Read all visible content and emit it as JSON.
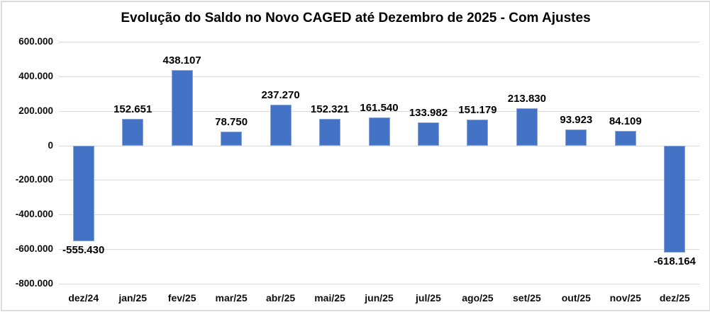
{
  "chart_data": {
    "type": "bar",
    "title": "Evolução do Saldo no Novo CAGED até Dezembro de 2025 - Com Ajustes",
    "xlabel": "",
    "ylabel": "",
    "categories": [
      "dez/24",
      "jan/25",
      "fev/25",
      "mar/25",
      "abr/25",
      "mai/25",
      "jun/25",
      "jul/25",
      "ago/25",
      "set/25",
      "out/25",
      "nov/25",
      "dez/25"
    ],
    "values": [
      -555430,
      152651,
      438107,
      78750,
      237270,
      152321,
      161540,
      133982,
      151179,
      213830,
      93923,
      84109,
      -618164
    ],
    "data_labels": [
      "-555.430",
      "152.651",
      "438.107",
      "78.750",
      "237.270",
      "152.321",
      "161.540",
      "133.982",
      "151.179",
      "213.830",
      "93.923",
      "84.109",
      "-618.164"
    ],
    "ylim": [
      -800000,
      600000
    ],
    "ytick_step": 200000,
    "ytick_labels": [
      "600.000",
      "400.000",
      "200.000",
      "0",
      "-200.000",
      "-400.000",
      "-600.000",
      "-800.000"
    ],
    "grid": true,
    "legend": false
  },
  "colors": {
    "bar_fill": "#4472C4",
    "bar_border": "#89A9DE",
    "gridline": "#D9D9D9",
    "text": "#000000",
    "frame_border": "#DCDCDC",
    "background": "#FFFFFF"
  }
}
